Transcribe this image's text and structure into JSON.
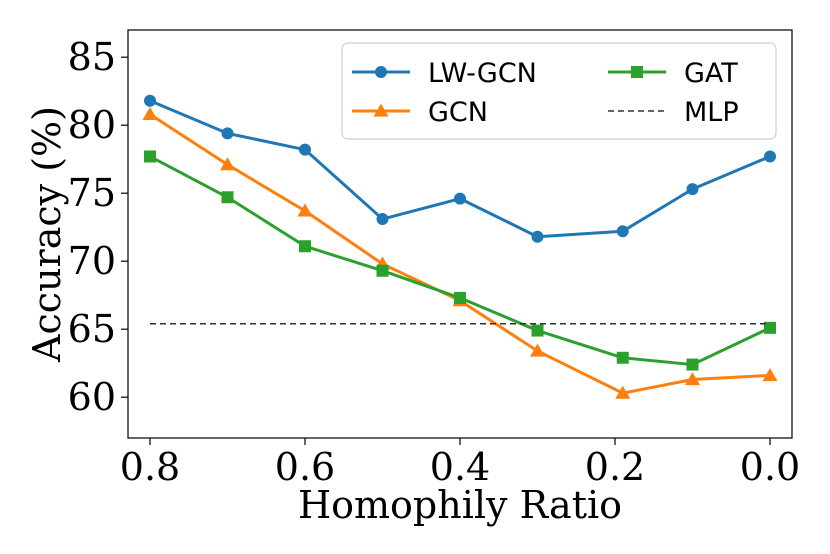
{
  "chart_data": {
    "type": "line",
    "xlabel": "Homophily Ratio",
    "ylabel": "Accuracy (%)",
    "xlim": [
      0.8,
      0.0
    ],
    "x_reversed": true,
    "ylim": [
      57,
      87
    ],
    "xticks": [
      0.8,
      0.6,
      0.4,
      0.2,
      0.0
    ],
    "xtick_labels": [
      "0.8",
      "0.6",
      "0.4",
      "0.2",
      "0.0"
    ],
    "yticks": [
      60,
      65,
      70,
      75,
      80,
      85
    ],
    "ytick_labels": [
      "60",
      "65",
      "70",
      "75",
      "80",
      "85"
    ],
    "grid": false,
    "legend": "top-right, 2 columns",
    "series": [
      {
        "name": "LW-GCN",
        "color": "#1f77b4",
        "marker": "circle",
        "x": [
          0.8,
          0.7,
          0.6,
          0.5,
          0.4,
          0.3,
          0.19,
          0.1,
          0.0
        ],
        "values": [
          81.8,
          79.4,
          78.2,
          73.1,
          74.6,
          71.8,
          72.2,
          75.3,
          77.7
        ]
      },
      {
        "name": "GCN",
        "color": "#ff7f0e",
        "marker": "triangle",
        "x": [
          0.8,
          0.7,
          0.6,
          0.5,
          0.4,
          0.3,
          0.19,
          0.1,
          0.0
        ],
        "values": [
          80.8,
          77.1,
          73.7,
          69.8,
          67.1,
          63.4,
          60.3,
          61.3,
          61.6
        ]
      },
      {
        "name": "GAT",
        "color": "#2ca02c",
        "marker": "square",
        "x": [
          0.8,
          0.7,
          0.6,
          0.5,
          0.4,
          0.3,
          0.19,
          0.1,
          0.0
        ],
        "values": [
          77.7,
          74.7,
          71.1,
          69.3,
          67.3,
          64.9,
          62.9,
          62.4,
          65.1
        ]
      },
      {
        "name": "MLP",
        "color": "#333333",
        "marker": "none",
        "line_style": "dashed",
        "x": [
          0.8,
          0.0
        ],
        "values": [
          65.4,
          65.4
        ]
      }
    ]
  }
}
